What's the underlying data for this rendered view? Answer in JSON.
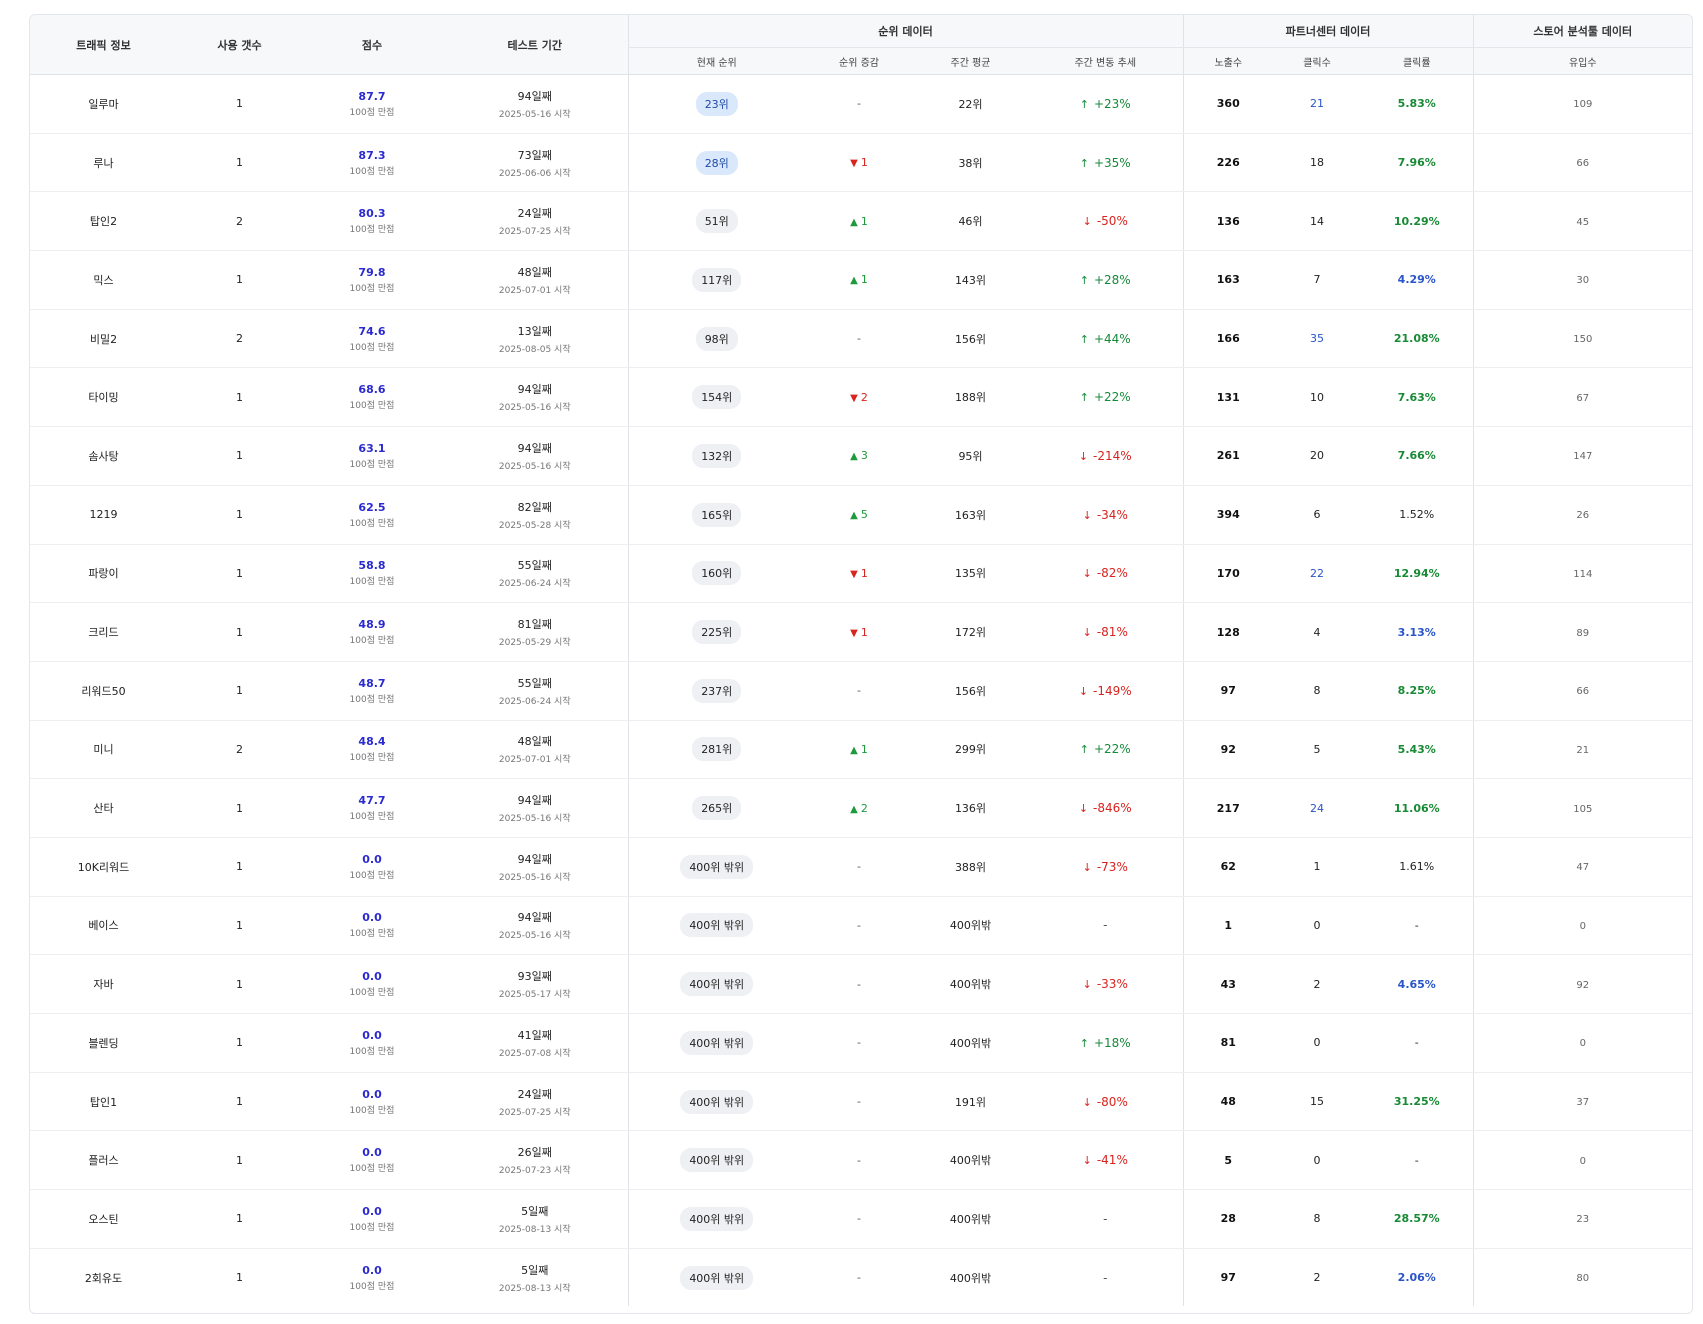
{
  "headers": {
    "traffic": "트래픽 정보",
    "usage": "사용 갯수",
    "score": "점수",
    "period": "테스트 기간",
    "rank_group": "순위 데이터",
    "partner_group": "파트너센터 데이터",
    "store_group": "스토어 분석툴 데이터",
    "current_rank": "현재 순위",
    "rank_change": "순위 증감",
    "weekly_avg": "주간 평균",
    "weekly_trend": "주간 변동 추세",
    "impressions": "노출수",
    "clicks": "클릭수",
    "ctr": "클릭률",
    "inflow": "유입수"
  },
  "score_sub": "100점 만점",
  "rows": [
    {
      "name": "일루마",
      "usage": "1",
      "score": "87.7",
      "days": "94일째",
      "start": "2025-05-16 시작",
      "rank": "23위",
      "rank_top": true,
      "change": "-",
      "change_dir": "none",
      "avg": "22위",
      "trend": "+23%",
      "trend_dir": "up",
      "imp": "360",
      "clicks": "21",
      "clicks_blue": true,
      "ctr": "5.83%",
      "ctr_color": "green",
      "inflow": "109"
    },
    {
      "name": "루나",
      "usage": "1",
      "score": "87.3",
      "days": "73일째",
      "start": "2025-06-06 시작",
      "rank": "28위",
      "rank_top": true,
      "change": "1",
      "change_dir": "down",
      "avg": "38위",
      "trend": "+35%",
      "trend_dir": "up",
      "imp": "226",
      "clicks": "18",
      "clicks_blue": false,
      "ctr": "7.96%",
      "ctr_color": "green",
      "inflow": "66"
    },
    {
      "name": "탑인2",
      "usage": "2",
      "score": "80.3",
      "days": "24일째",
      "start": "2025-07-25 시작",
      "rank": "51위",
      "rank_top": false,
      "change": "1",
      "change_dir": "up",
      "avg": "46위",
      "trend": "-50%",
      "trend_dir": "down",
      "imp": "136",
      "clicks": "14",
      "clicks_blue": false,
      "ctr": "10.29%",
      "ctr_color": "green",
      "inflow": "45"
    },
    {
      "name": "믹스",
      "usage": "1",
      "score": "79.8",
      "days": "48일째",
      "start": "2025-07-01 시작",
      "rank": "117위",
      "rank_top": false,
      "change": "1",
      "change_dir": "up",
      "avg": "143위",
      "trend": "+28%",
      "trend_dir": "up",
      "imp": "163",
      "clicks": "7",
      "clicks_blue": false,
      "ctr": "4.29%",
      "ctr_color": "blue",
      "inflow": "30"
    },
    {
      "name": "비밀2",
      "usage": "2",
      "score": "74.6",
      "days": "13일째",
      "start": "2025-08-05 시작",
      "rank": "98위",
      "rank_top": false,
      "change": "-",
      "change_dir": "none",
      "avg": "156위",
      "trend": "+44%",
      "trend_dir": "up",
      "imp": "166",
      "clicks": "35",
      "clicks_blue": true,
      "ctr": "21.08%",
      "ctr_color": "green",
      "inflow": "150"
    },
    {
      "name": "타이밍",
      "usage": "1",
      "score": "68.6",
      "days": "94일째",
      "start": "2025-05-16 시작",
      "rank": "154위",
      "rank_top": false,
      "change": "2",
      "change_dir": "down",
      "avg": "188위",
      "trend": "+22%",
      "trend_dir": "up",
      "imp": "131",
      "clicks": "10",
      "clicks_blue": false,
      "ctr": "7.63%",
      "ctr_color": "green",
      "inflow": "67"
    },
    {
      "name": "솜사탕",
      "usage": "1",
      "score": "63.1",
      "days": "94일째",
      "start": "2025-05-16 시작",
      "rank": "132위",
      "rank_top": false,
      "change": "3",
      "change_dir": "up",
      "avg": "95위",
      "trend": "-214%",
      "trend_dir": "down",
      "imp": "261",
      "clicks": "20",
      "clicks_blue": false,
      "ctr": "7.66%",
      "ctr_color": "green",
      "inflow": "147"
    },
    {
      "name": "1219",
      "usage": "1",
      "score": "62.5",
      "days": "82일째",
      "start": "2025-05-28 시작",
      "rank": "165위",
      "rank_top": false,
      "change": "5",
      "change_dir": "up",
      "avg": "163위",
      "trend": "-34%",
      "trend_dir": "down",
      "imp": "394",
      "clicks": "6",
      "clicks_blue": false,
      "ctr": "1.52%",
      "ctr_color": "plain",
      "inflow": "26"
    },
    {
      "name": "파랑이",
      "usage": "1",
      "score": "58.8",
      "days": "55일째",
      "start": "2025-06-24 시작",
      "rank": "160위",
      "rank_top": false,
      "change": "1",
      "change_dir": "down",
      "avg": "135위",
      "trend": "-82%",
      "trend_dir": "down",
      "imp": "170",
      "clicks": "22",
      "clicks_blue": true,
      "ctr": "12.94%",
      "ctr_color": "green",
      "inflow": "114"
    },
    {
      "name": "크리드",
      "usage": "1",
      "score": "48.9",
      "days": "81일째",
      "start": "2025-05-29 시작",
      "rank": "225위",
      "rank_top": false,
      "change": "1",
      "change_dir": "down",
      "avg": "172위",
      "trend": "-81%",
      "trend_dir": "down",
      "imp": "128",
      "clicks": "4",
      "clicks_blue": false,
      "ctr": "3.13%",
      "ctr_color": "blue",
      "inflow": "89"
    },
    {
      "name": "리워드50",
      "usage": "1",
      "score": "48.7",
      "days": "55일째",
      "start": "2025-06-24 시작",
      "rank": "237위",
      "rank_top": false,
      "change": "-",
      "change_dir": "none",
      "avg": "156위",
      "trend": "-149%",
      "trend_dir": "down",
      "imp": "97",
      "clicks": "8",
      "clicks_blue": false,
      "ctr": "8.25%",
      "ctr_color": "green",
      "inflow": "66"
    },
    {
      "name": "미니",
      "usage": "2",
      "score": "48.4",
      "days": "48일째",
      "start": "2025-07-01 시작",
      "rank": "281위",
      "rank_top": false,
      "change": "1",
      "change_dir": "up",
      "avg": "299위",
      "trend": "+22%",
      "trend_dir": "up",
      "imp": "92",
      "clicks": "5",
      "clicks_blue": false,
      "ctr": "5.43%",
      "ctr_color": "green",
      "inflow": "21"
    },
    {
      "name": "산타",
      "usage": "1",
      "score": "47.7",
      "days": "94일째",
      "start": "2025-05-16 시작",
      "rank": "265위",
      "rank_top": false,
      "change": "2",
      "change_dir": "up",
      "avg": "136위",
      "trend": "-846%",
      "trend_dir": "down",
      "imp": "217",
      "clicks": "24",
      "clicks_blue": true,
      "ctr": "11.06%",
      "ctr_color": "green",
      "inflow": "105"
    },
    {
      "name": "10K리워드",
      "usage": "1",
      "score": "0.0",
      "days": "94일째",
      "start": "2025-05-16 시작",
      "rank": "400위 밖위",
      "rank_top": false,
      "change": "-",
      "change_dir": "none",
      "avg": "388위",
      "trend": "-73%",
      "trend_dir": "down",
      "imp": "62",
      "clicks": "1",
      "clicks_blue": false,
      "ctr": "1.61%",
      "ctr_color": "plain",
      "inflow": "47"
    },
    {
      "name": "베이스",
      "usage": "1",
      "score": "0.0",
      "days": "94일째",
      "start": "2025-05-16 시작",
      "rank": "400위 밖위",
      "rank_top": false,
      "change": "-",
      "change_dir": "none",
      "avg": "400위밖",
      "trend": "-",
      "trend_dir": "none",
      "imp": "1",
      "clicks": "0",
      "clicks_blue": false,
      "ctr": "-",
      "ctr_color": "plain",
      "inflow": "0"
    },
    {
      "name": "자바",
      "usage": "1",
      "score": "0.0",
      "days": "93일째",
      "start": "2025-05-17 시작",
      "rank": "400위 밖위",
      "rank_top": false,
      "change": "-",
      "change_dir": "none",
      "avg": "400위밖",
      "trend": "-33%",
      "trend_dir": "down",
      "imp": "43",
      "clicks": "2",
      "clicks_blue": false,
      "ctr": "4.65%",
      "ctr_color": "blue",
      "inflow": "92"
    },
    {
      "name": "블렌딩",
      "usage": "1",
      "score": "0.0",
      "days": "41일째",
      "start": "2025-07-08 시작",
      "rank": "400위 밖위",
      "rank_top": false,
      "change": "-",
      "change_dir": "none",
      "avg": "400위밖",
      "trend": "+18%",
      "trend_dir": "up",
      "imp": "81",
      "clicks": "0",
      "clicks_blue": false,
      "ctr": "-",
      "ctr_color": "plain",
      "inflow": "0"
    },
    {
      "name": "탑인1",
      "usage": "1",
      "score": "0.0",
      "days": "24일째",
      "start": "2025-07-25 시작",
      "rank": "400위 밖위",
      "rank_top": false,
      "change": "-",
      "change_dir": "none",
      "avg": "191위",
      "trend": "-80%",
      "trend_dir": "down",
      "imp": "48",
      "clicks": "15",
      "clicks_blue": false,
      "ctr": "31.25%",
      "ctr_color": "green",
      "inflow": "37"
    },
    {
      "name": "플러스",
      "usage": "1",
      "score": "0.0",
      "days": "26일째",
      "start": "2025-07-23 시작",
      "rank": "400위 밖위",
      "rank_top": false,
      "change": "-",
      "change_dir": "none",
      "avg": "400위밖",
      "trend": "-41%",
      "trend_dir": "down",
      "imp": "5",
      "clicks": "0",
      "clicks_blue": false,
      "ctr": "-",
      "ctr_color": "plain",
      "inflow": "0"
    },
    {
      "name": "오스틴",
      "usage": "1",
      "score": "0.0",
      "days": "5일째",
      "start": "2025-08-13 시작",
      "rank": "400위 밖위",
      "rank_top": false,
      "change": "-",
      "change_dir": "none",
      "avg": "400위밖",
      "trend": "-",
      "trend_dir": "none",
      "imp": "28",
      "clicks": "8",
      "clicks_blue": false,
      "ctr": "28.57%",
      "ctr_color": "green",
      "inflow": "23"
    },
    {
      "name": "2회유도",
      "usage": "1",
      "score": "0.0",
      "days": "5일째",
      "start": "2025-08-13 시작",
      "rank": "400위 밖위",
      "rank_top": false,
      "change": "-",
      "change_dir": "none",
      "avg": "400위밖",
      "trend": "-",
      "trend_dir": "none",
      "imp": "97",
      "clicks": "2",
      "clicks_blue": false,
      "ctr": "2.06%",
      "ctr_color": "blue",
      "inflow": "80"
    }
  ],
  "icons": {
    "up_triangle": "triangle-up-icon",
    "down_triangle": "triangle-down-icon",
    "up_arrow": "arrow-up-icon",
    "down_arrow": "arrow-down-icon"
  }
}
